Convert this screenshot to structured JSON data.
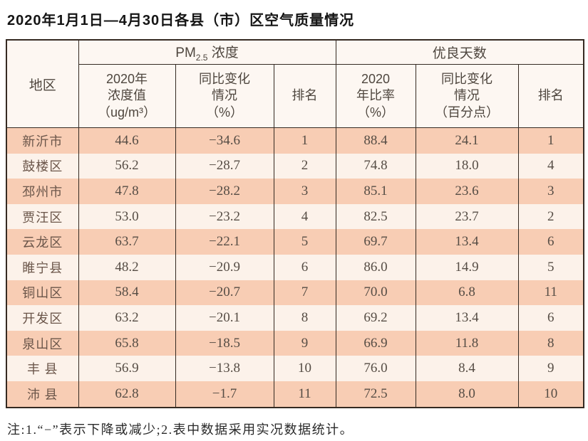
{
  "title": "2020年1月1日—4月30日各县（市）区空气质量情况",
  "header": {
    "region": "地区",
    "pm25_group": {
      "pm": "PM",
      "sub": "2.5",
      "rest": " 浓度"
    },
    "good_days_group": "优良天数",
    "cols": {
      "pm_value": "2020年\n浓度值\n（ug/m³）",
      "pm_change": "同比变化\n情况\n（%）",
      "pm_rank": "排名",
      "good_rate": "2020\n年比率\n（%）",
      "good_change": "同比变化\n情况\n（百分点）",
      "good_rank": "排名"
    }
  },
  "rows": [
    {
      "region": "新沂市",
      "pm_value": "44.6",
      "pm_change": "−34.6",
      "pm_rank": "1",
      "good_rate": "88.4",
      "good_change": "24.1",
      "good_rank": "1"
    },
    {
      "region": "鼓楼区",
      "pm_value": "56.2",
      "pm_change": "−28.7",
      "pm_rank": "2",
      "good_rate": "74.8",
      "good_change": "18.0",
      "good_rank": "4"
    },
    {
      "region": "邳州市",
      "pm_value": "47.8",
      "pm_change": "−28.2",
      "pm_rank": "3",
      "good_rate": "85.1",
      "good_change": "23.6",
      "good_rank": "3"
    },
    {
      "region": "贾汪区",
      "pm_value": "53.0",
      "pm_change": "−23.2",
      "pm_rank": "4",
      "good_rate": "82.5",
      "good_change": "23.7",
      "good_rank": "2"
    },
    {
      "region": "云龙区",
      "pm_value": "63.7",
      "pm_change": "−22.1",
      "pm_rank": "5",
      "good_rate": "69.7",
      "good_change": "13.4",
      "good_rank": "6"
    },
    {
      "region": "睢宁县",
      "pm_value": "48.2",
      "pm_change": "−20.9",
      "pm_rank": "6",
      "good_rate": "86.0",
      "good_change": "14.9",
      "good_rank": "5"
    },
    {
      "region": "铜山区",
      "pm_value": "58.4",
      "pm_change": "−20.7",
      "pm_rank": "7",
      "good_rate": "70.0",
      "good_change": "6.8",
      "good_rank": "11"
    },
    {
      "region": "开发区",
      "pm_value": "63.2",
      "pm_change": "−20.1",
      "pm_rank": "8",
      "good_rate": "69.2",
      "good_change": "13.4",
      "good_rank": "6"
    },
    {
      "region": "泉山区",
      "pm_value": "65.8",
      "pm_change": "−18.5",
      "pm_rank": "9",
      "good_rate": "66.9",
      "good_change": "11.8",
      "good_rank": "8"
    },
    {
      "region": "丰 县",
      "pm_value": "56.9",
      "pm_change": "−13.8",
      "pm_rank": "10",
      "good_rate": "76.0",
      "good_change": "8.4",
      "good_rank": "9"
    },
    {
      "region": "沛 县",
      "pm_value": "62.8",
      "pm_change": "−1.7",
      "pm_rank": "11",
      "good_rate": "72.5",
      "good_change": "8.0",
      "good_rank": "10"
    }
  ],
  "note": "注:1.“−”表示下降或减少;2.表中数据采用实况数据统计。",
  "colors": {
    "row_dark": "#f8cdb4",
    "row_light": "#fcf2ea",
    "header_bg": "#fdf7f2",
    "border": "#352a22"
  }
}
